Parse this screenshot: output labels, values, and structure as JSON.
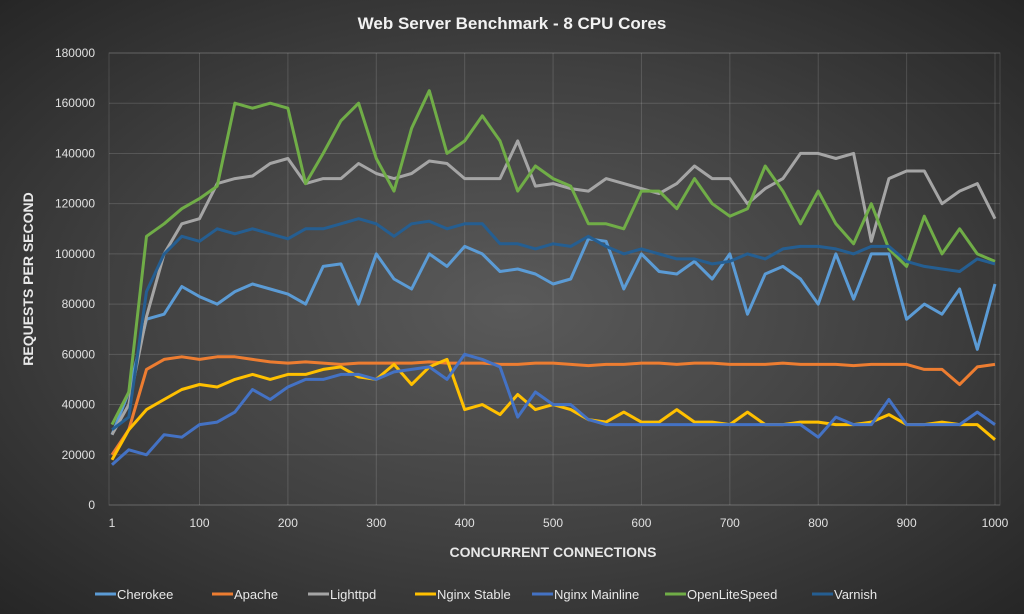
{
  "chart_data": {
    "type": "line",
    "title": "Web Server Benchmark - 8 CPU Cores",
    "xlabel": "CONCURRENT CONNECTIONS",
    "ylabel": "REQUESTS PER SECOND",
    "xlim": [
      1,
      1000
    ],
    "ylim": [
      0,
      180000
    ],
    "x_ticks": [
      "1",
      "100",
      "200",
      "300",
      "400",
      "500",
      "600",
      "700",
      "800",
      "900",
      "1000"
    ],
    "y_ticks": [
      "0",
      "20000",
      "40000",
      "60000",
      "80000",
      "100000",
      "120000",
      "140000",
      "160000",
      "180000"
    ],
    "grid": true,
    "legend": "bottom",
    "x": [
      1,
      20,
      40,
      60,
      80,
      100,
      120,
      140,
      160,
      180,
      200,
      220,
      240,
      260,
      280,
      300,
      320,
      340,
      360,
      380,
      400,
      420,
      440,
      460,
      480,
      500,
      520,
      540,
      560,
      580,
      600,
      620,
      640,
      660,
      680,
      700,
      720,
      740,
      760,
      780,
      800,
      820,
      840,
      860,
      880,
      900,
      920,
      940,
      960,
      980,
      1000
    ],
    "series": [
      {
        "name": "Cherokee",
        "color": "#5B9BD5",
        "values": [
          28000,
          45000,
          74000,
          76000,
          87000,
          83000,
          80000,
          85000,
          88000,
          86000,
          84000,
          80000,
          95000,
          96000,
          80000,
          100000,
          90000,
          86000,
          100000,
          95000,
          103000,
          100000,
          93000,
          94000,
          92000,
          88000,
          90000,
          106000,
          105000,
          86000,
          100000,
          93000,
          92000,
          97000,
          90000,
          100000,
          76000,
          92000,
          95000,
          90000,
          80000,
          100000,
          82000,
          100000,
          100000,
          74000,
          80000,
          76000,
          86000,
          62000,
          88000
        ]
      },
      {
        "name": "Apache",
        "color": "#ED7D31",
        "values": [
          20000,
          30000,
          54000,
          58000,
          59000,
          58000,
          59000,
          59000,
          58000,
          57000,
          56500,
          57000,
          56500,
          56000,
          56500,
          56500,
          56500,
          56500,
          57000,
          56500,
          56500,
          56500,
          56000,
          56000,
          56500,
          56500,
          56000,
          55500,
          56000,
          56000,
          56500,
          56500,
          56000,
          56500,
          56500,
          56000,
          56000,
          56000,
          56500,
          56000,
          56000,
          56000,
          55500,
          56000,
          56000,
          56000,
          54000,
          54000,
          48000,
          55000,
          56000
        ]
      },
      {
        "name": "Lighttpd",
        "color": "#A5A5A5",
        "values": [
          28000,
          40000,
          75000,
          100000,
          112000,
          114000,
          128000,
          130000,
          131000,
          136000,
          138000,
          128000,
          130000,
          130000,
          136000,
          132000,
          130000,
          132000,
          137000,
          136000,
          130000,
          130000,
          130000,
          145000,
          127000,
          128000,
          126000,
          125000,
          130000,
          128000,
          126000,
          124000,
          128000,
          135000,
          130000,
          130000,
          120000,
          126000,
          130000,
          140000,
          140000,
          138000,
          140000,
          105000,
          130000,
          133000,
          133000,
          120000,
          125000,
          128000,
          114000
        ]
      },
      {
        "name": "Nginx Stable",
        "color": "#FFC000",
        "values": [
          18000,
          30000,
          38000,
          42000,
          46000,
          48000,
          47000,
          50000,
          52000,
          50000,
          52000,
          52000,
          54000,
          55000,
          51000,
          50000,
          56000,
          48000,
          55000,
          58000,
          38000,
          40000,
          36000,
          44000,
          38000,
          40000,
          38000,
          34000,
          33000,
          37000,
          33000,
          33000,
          38000,
          33000,
          33000,
          32000,
          37000,
          32000,
          32000,
          33000,
          33000,
          32000,
          32000,
          33000,
          36000,
          32000,
          32000,
          33000,
          32000,
          32000,
          26000
        ]
      },
      {
        "name": "Nginx Mainline",
        "color": "#4472C4",
        "values": [
          16000,
          22000,
          20000,
          28000,
          27000,
          32000,
          33000,
          37000,
          46000,
          42000,
          47000,
          50000,
          50000,
          52000,
          52000,
          50000,
          53000,
          54000,
          55000,
          50000,
          60000,
          58000,
          55000,
          35000,
          45000,
          40000,
          40000,
          34000,
          32000,
          32000,
          32000,
          32000,
          32000,
          32000,
          32000,
          32000,
          32000,
          32000,
          32000,
          32000,
          27000,
          35000,
          32000,
          32000,
          42000,
          32000,
          32000,
          32000,
          32000,
          37000,
          32000
        ]
      },
      {
        "name": "OpenLiteSpeed",
        "color": "#70AD47",
        "values": [
          32000,
          45000,
          107000,
          112000,
          118000,
          122000,
          127000,
          160000,
          158000,
          160000,
          158000,
          128000,
          140000,
          153000,
          160000,
          138000,
          125000,
          150000,
          165000,
          140000,
          145000,
          155000,
          145000,
          125000,
          135000,
          130000,
          127000,
          112000,
          112000,
          110000,
          125000,
          125000,
          118000,
          130000,
          120000,
          115000,
          118000,
          135000,
          125000,
          112000,
          125000,
          112000,
          104000,
          120000,
          102000,
          95000,
          115000,
          100000,
          110000,
          100000,
          97000
        ]
      },
      {
        "name": "Varnish",
        "color": "#255E91",
        "values": [
          30000,
          35000,
          85000,
          100000,
          107000,
          105000,
          110000,
          108000,
          110000,
          108000,
          106000,
          110000,
          110000,
          112000,
          114000,
          112000,
          107000,
          112000,
          113000,
          110000,
          112000,
          112000,
          104000,
          104000,
          102000,
          104000,
          103000,
          107000,
          103000,
          100000,
          102000,
          100000,
          98000,
          98000,
          96000,
          97000,
          100000,
          98000,
          102000,
          103000,
          103000,
          102000,
          100000,
          103000,
          103000,
          97000,
          95000,
          94000,
          93000,
          98000,
          96000
        ]
      }
    ]
  }
}
